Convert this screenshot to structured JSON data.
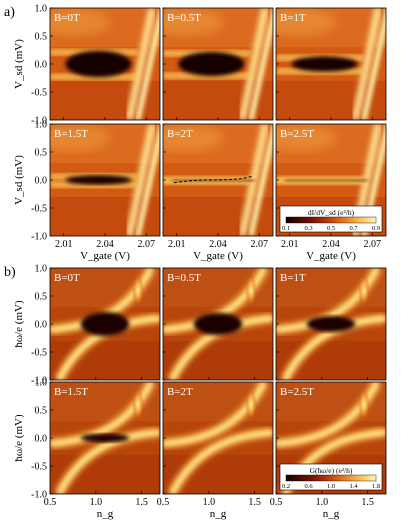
{
  "panel_labels": {
    "a": "a)",
    "b": "b)"
  },
  "colorbars": {
    "a": {
      "label": "dI/dV_sd (e²/h)",
      "ticks": [
        "0.1",
        "0.3",
        "0.5",
        "0.7",
        "0.9"
      ]
    },
    "b": {
      "label": "G(ħω/e) (e²/h)",
      "ticks": [
        "0.2",
        "0.6",
        "1.0",
        "1.4",
        "1.8"
      ]
    }
  },
  "colors": {
    "dark": "#120000",
    "mid": "#c84a0c",
    "light": "#fff7b0"
  },
  "chart_data": [
    {
      "type": "heatmap",
      "panel": "a",
      "xlabel": "V_gate (V)",
      "ylabel": "V_sd (mV)",
      "xlim": [
        2.0,
        2.08
      ],
      "ylim": [
        -1.0,
        1.0
      ],
      "xticks": [
        "2.01",
        "2.04",
        "2.07"
      ],
      "yticks": [
        "-1.0",
        "-0.5",
        "0.0",
        "0.5",
        "1.0"
      ],
      "subplots": [
        {
          "field": "B=0T",
          "gap_mV": 0.2
        },
        {
          "field": "B=0.5T",
          "gap_mV": 0.18
        },
        {
          "field": "B=1T",
          "gap_mV": 0.1
        },
        {
          "field": "B=1.5T",
          "gap_mV": 0.05
        },
        {
          "field": "B=2T",
          "gap_mV": 0.0,
          "dashed_line": true
        },
        {
          "field": "B=2.5T",
          "gap_mV": 0.0
        }
      ],
      "colorbar_range": [
        0.1,
        0.9
      ]
    },
    {
      "type": "heatmap",
      "panel": "b",
      "xlabel": "n_g",
      "ylabel": "ħω/e (mV)",
      "xlim": [
        0.5,
        1.7
      ],
      "ylim": [
        -1.0,
        1.0
      ],
      "xticks": [
        "0.5",
        "1.0",
        "1.5"
      ],
      "yticks": [
        "-1.0",
        "-0.5",
        "0.0",
        "0.5",
        "1.0"
      ],
      "subplots": [
        {
          "field": "B=0T",
          "gap_mV": 0.2
        },
        {
          "field": "B=0.5T",
          "gap_mV": 0.18
        },
        {
          "field": "B=1T",
          "gap_mV": 0.12
        },
        {
          "field": "B=1.5T",
          "gap_mV": 0.05
        },
        {
          "field": "B=2T",
          "gap_mV": 0.0
        },
        {
          "field": "B=2.5T",
          "gap_mV": 0.0
        }
      ],
      "colorbar_range": [
        0.2,
        1.8
      ]
    }
  ]
}
